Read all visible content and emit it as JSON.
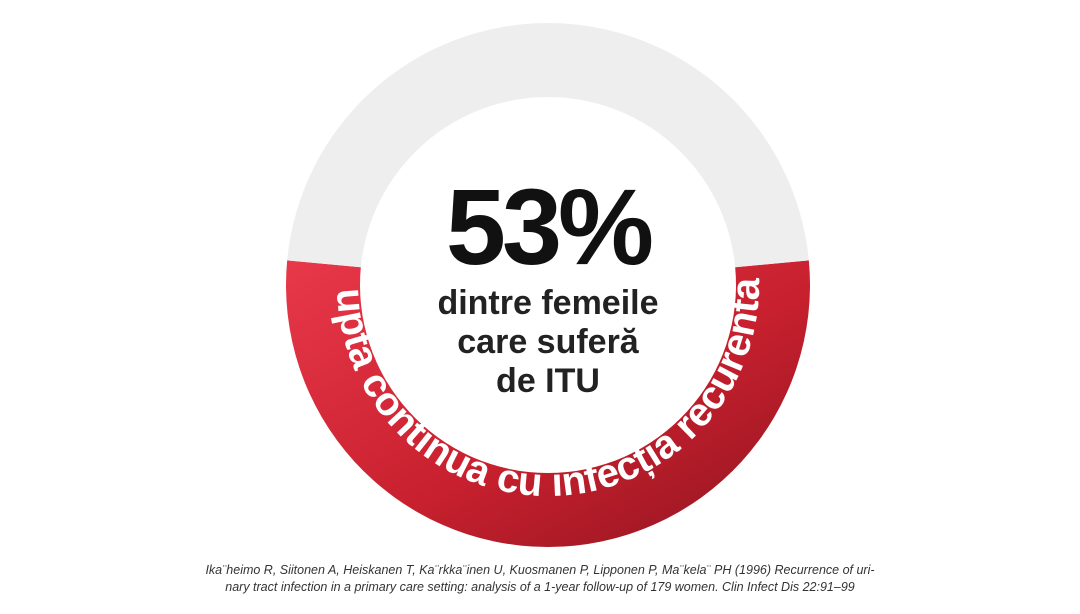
{
  "chart_data": {
    "type": "pie",
    "categories": [
      "luptă continuă cu infecția recurentă",
      ""
    ],
    "values": [
      53,
      47
    ],
    "colors": [
      "#c8202e",
      "#eeeeee"
    ],
    "center_value": "53%",
    "center_text": [
      "dintre femeile",
      "care suferă",
      "de ITU"
    ],
    "arc_label": "luptă continuă cu infecția recurentă"
  },
  "citation": {
    "line1": "Ika¨heimo R, Siitonen A, Heiskanen T, Ka¨rkka¨inen U, Kuosmanen P, Lipponen P, Ma¨kela¨ PH (1996) Recurrence of uri-",
    "line2": "nary tract infection in a primary care setting: analysis of a 1-year follow-up of 179 women. Clin Infect Dis 22:91–99"
  }
}
